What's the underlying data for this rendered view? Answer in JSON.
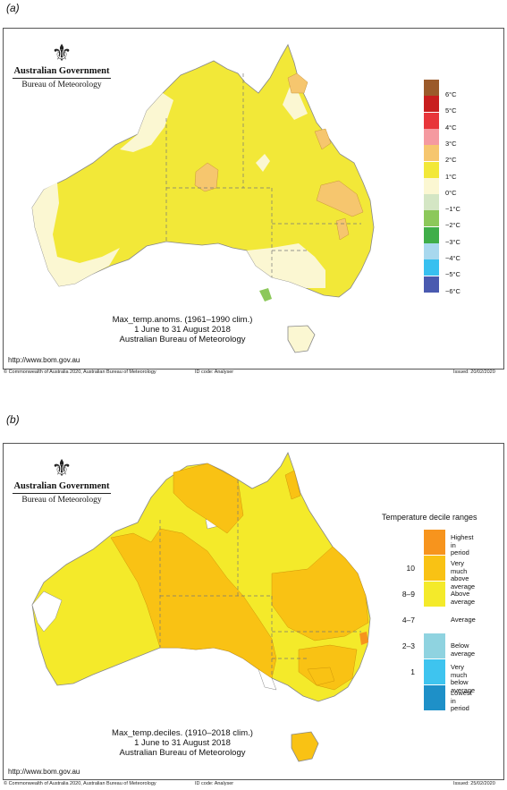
{
  "panel_a": {
    "label": "(a)",
    "gov": {
      "title": "Australian Government",
      "subtitle": "Bureau of Meteorology"
    },
    "caption": [
      "Max_temp.anoms. (1961–1990 clim.)",
      "1 June to 31 August 2018",
      "Australian Bureau of Meteorology"
    ],
    "url": "http://www.bom.gov.au",
    "footer_left": "© Commonwealth of Australia 2020, Australian Bureau of Meteorology",
    "footer_mid": "ID code: Analyser",
    "footer_right": "Issued: 20/02/2020",
    "legend": [
      {
        "label": "6°C",
        "color": "#9b5a2a"
      },
      {
        "label": "5°C",
        "color": "#c81e1e"
      },
      {
        "label": "4°C",
        "color": "#e8353a"
      },
      {
        "label": "3°C",
        "color": "#f59aa0"
      },
      {
        "label": "2°C",
        "color": "#f6c66e"
      },
      {
        "label": "1°C",
        "color": "#f2e838"
      },
      {
        "label": "0°C",
        "color": "#fbf7d2"
      },
      {
        "label": "−1°C",
        "color": "#d4e6c4"
      },
      {
        "label": "−2°C",
        "color": "#8cc85a"
      },
      {
        "label": "−3°C",
        "color": "#3fae49"
      },
      {
        "label": "−4°C",
        "color": "#a8d8ee"
      },
      {
        "label": "−5°C",
        "color": "#38c0f0"
      },
      {
        "label": "−6°C",
        "color": "#4a5ab0"
      }
    ]
  },
  "panel_b": {
    "label": "(b)",
    "gov": {
      "title": "Australian Government",
      "subtitle": "Bureau of Meteorology"
    },
    "caption": [
      "Max_temp.deciles. (1910–2018 clim.)",
      "1 June to 31 August 2018",
      "Australian Bureau of Meteorology"
    ],
    "url": "http://www.bom.gov.au",
    "footer_left": "© Commonwealth of Australia 2020, Australian Bureau of Meteorology",
    "footer_mid": "ID code: Analyser",
    "footer_right": "Issued: 25/02/2020",
    "legend_title": "Temperature decile ranges",
    "legend": [
      {
        "num": "",
        "desc": [
          "Highest in",
          "period"
        ],
        "color": "#f7941d"
      },
      {
        "num": "10",
        "desc": [
          "Very much",
          "above average"
        ],
        "color": "#f9c214"
      },
      {
        "num": "8–9",
        "desc": [
          "Above average"
        ],
        "color": "#f4ea2a"
      },
      {
        "num": "4–7",
        "desc": [
          "Average"
        ],
        "color": "#ffffff"
      },
      {
        "num": "2–3",
        "desc": [
          "Below average"
        ],
        "color": "#8fd3e0"
      },
      {
        "num": "1",
        "desc": [
          "Very much",
          "below average"
        ],
        "color": "#3ec4ef"
      },
      {
        "num": "",
        "desc": [
          "Lowest in",
          "period"
        ],
        "color": "#1e90c8"
      }
    ]
  }
}
